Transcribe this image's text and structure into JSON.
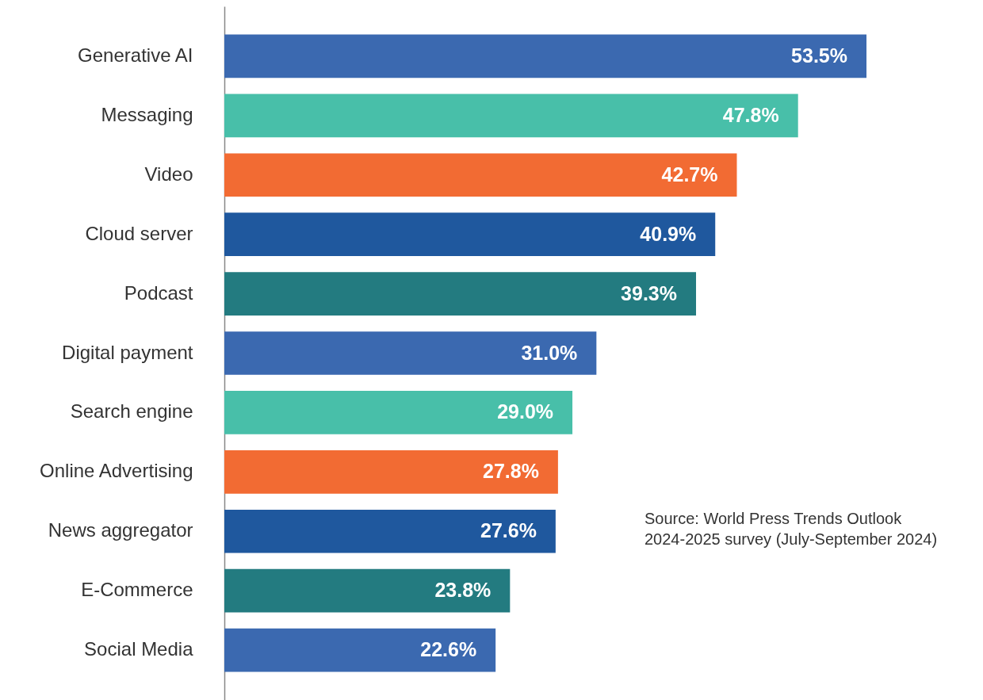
{
  "chart_data": {
    "type": "bar",
    "orientation": "horizontal",
    "categories": [
      "Generative AI",
      "Messaging",
      "Video",
      "Cloud server",
      "Podcast",
      "Digital payment",
      "Search engine",
      "Online Advertising",
      "News aggregator",
      "E-Commerce",
      "Social Media"
    ],
    "values": [
      53.5,
      47.8,
      42.7,
      40.9,
      39.3,
      31.0,
      29.0,
      27.8,
      27.6,
      23.8,
      22.6
    ],
    "value_labels": [
      "53.5%",
      "47.8%",
      "42.7%",
      "40.9%",
      "39.3%",
      "31.0%",
      "29.0%",
      "27.8%",
      "27.6%",
      "23.8%",
      "22.6%"
    ],
    "colors": [
      "#3b69b0",
      "#48bfa9",
      "#f26b33",
      "#1f589e",
      "#237b80",
      "#3b69b0",
      "#48bfa9",
      "#f26b33",
      "#1f589e",
      "#237b80",
      "#3b69b0"
    ],
    "annotations": [
      "Source: World Press Trends Outlook\n2024-2025 survey (July-September 2024)"
    ]
  }
}
